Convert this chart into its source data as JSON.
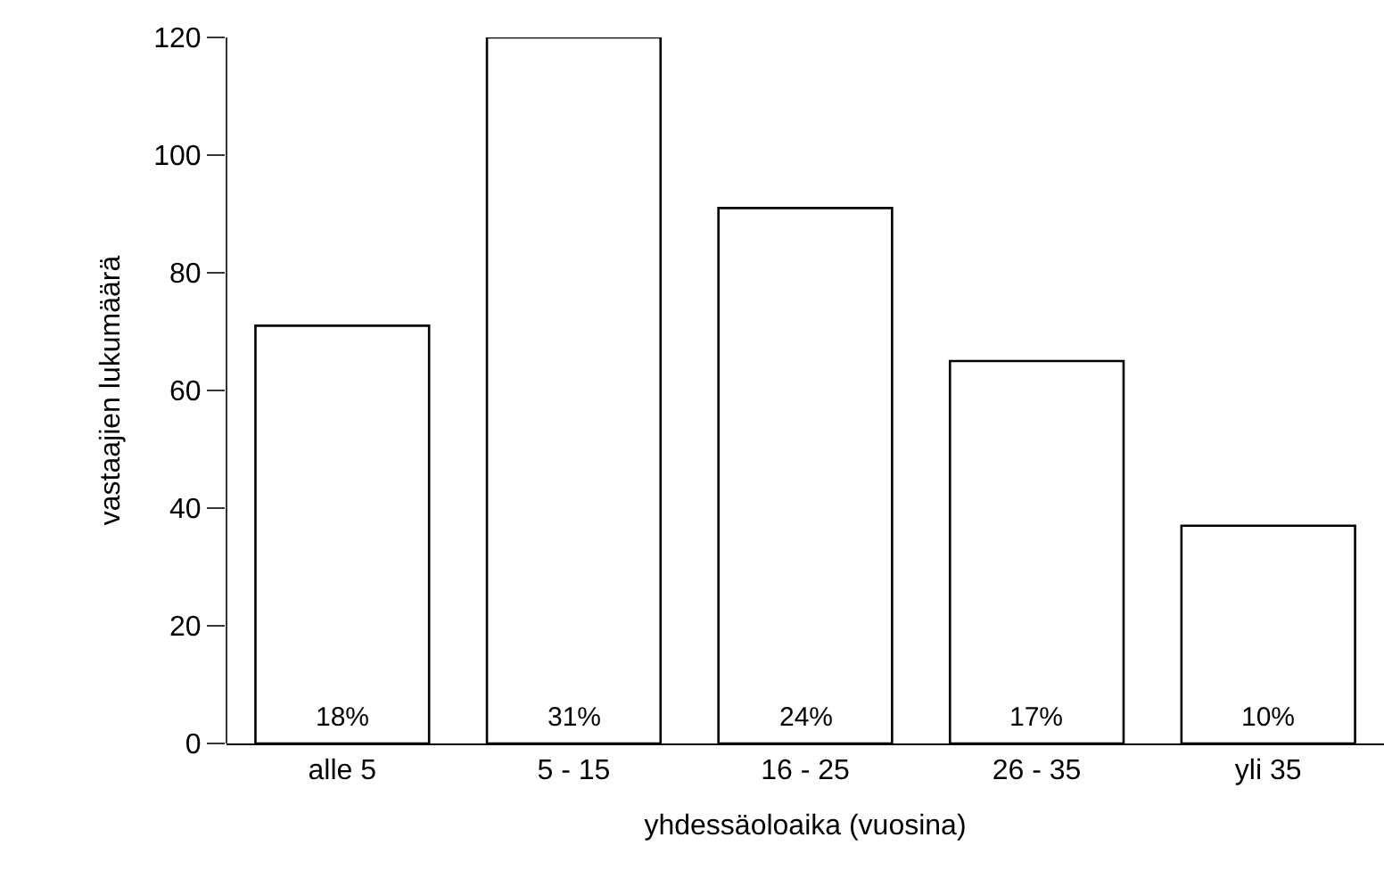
{
  "chart_data": {
    "type": "bar",
    "xlabel": "yhdessäoloaika (vuosina)",
    "ylabel": "vastaajien lukumäärä",
    "categories": [
      "alle 5",
      "5 - 15",
      "16 - 25",
      "26 - 35",
      "yli 35"
    ],
    "values": [
      71,
      120,
      91,
      65,
      37
    ],
    "annotations": [
      {
        "text": "18%",
        "x": "alle 5",
        "y": 0
      },
      {
        "text": "31%",
        "x": "5 - 15",
        "y": 0
      },
      {
        "text": "24%",
        "x": "16 - 25",
        "y": 0
      },
      {
        "text": "17%",
        "x": "26 - 35",
        "y": 0
      },
      {
        "text": "10%",
        "x": "yli 35",
        "y": 0
      }
    ],
    "color": "#ffffff",
    "ylim": [
      0,
      120
    ],
    "yticks": [
      0,
      20,
      40,
      60,
      80,
      100,
      120
    ],
    "grid": false
  }
}
